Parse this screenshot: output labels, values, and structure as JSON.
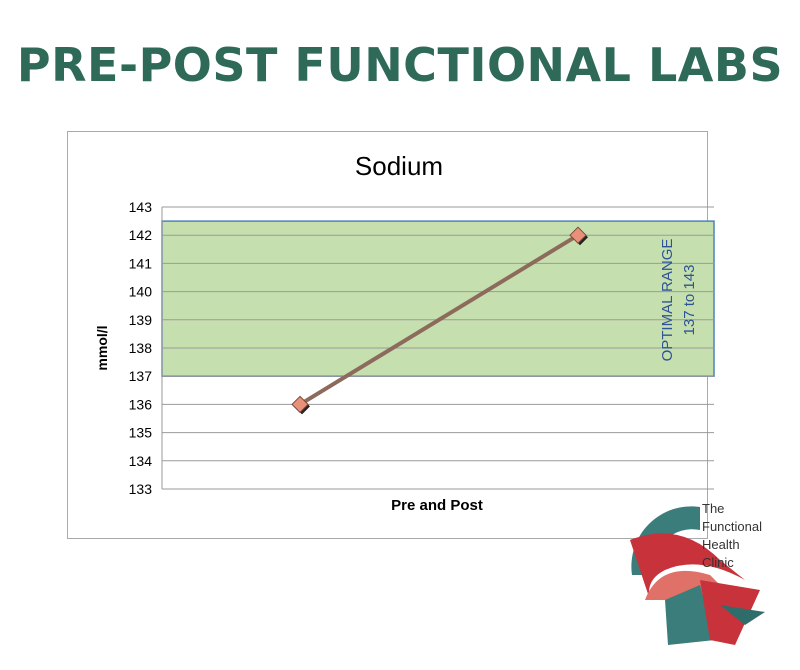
{
  "page": {
    "title": "PRE-POST FUNCTIONAL LABS"
  },
  "chart_data": {
    "type": "line",
    "title": "Sodium",
    "xlabel": "Pre and Post",
    "ylabel": "mmol/l",
    "ylim": [
      133,
      143
    ],
    "yticks": [
      133,
      134,
      135,
      136,
      137,
      138,
      139,
      140,
      141,
      142,
      143
    ],
    "grid": true,
    "series": [
      {
        "values": [
          136,
          142
        ]
      }
    ],
    "band": {
      "from": 137,
      "to": 142.5,
      "label_line1": "OPTIMAL RANGE",
      "label_line2": "137  to 143"
    },
    "colors": {
      "band_fill": "#c6dfae",
      "band_border": "#4f81bd",
      "line": "#8c6a5c",
      "marker": "#e9907b",
      "title": "#2e6a57"
    }
  },
  "logo": {
    "line1": "The",
    "line2": "Functional",
    "line3": "Health",
    "line4": "Clinic"
  }
}
